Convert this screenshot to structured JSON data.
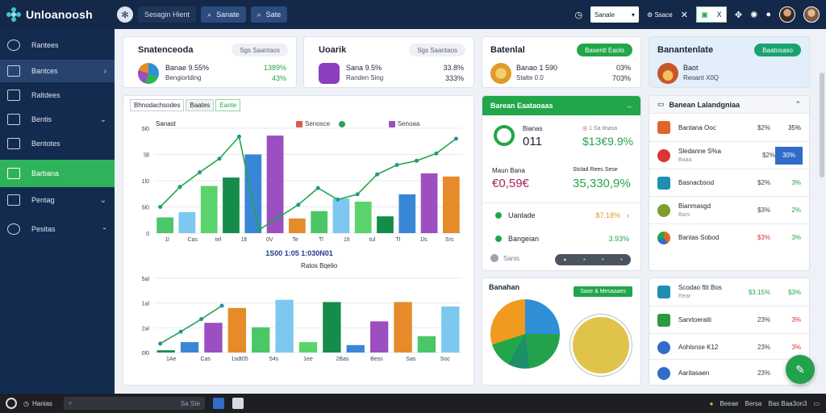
{
  "app": {
    "title": "Unloanoosh",
    "top_tabs": [
      "Sesagin Hient",
      "Sanate",
      "Sate"
    ]
  },
  "topbar": {
    "select_label": "Sanale",
    "close_label": "Ssace",
    "chip_label": "X"
  },
  "sidebar": {
    "items": [
      {
        "label": "Rantees",
        "chevron": "",
        "state": "normal"
      },
      {
        "label": "Bantces",
        "chevron": "›",
        "state": "selected"
      },
      {
        "label": "Raltdees",
        "chevron": "",
        "state": "normal"
      },
      {
        "label": "Bentis",
        "chevron": "⌄",
        "state": "normal"
      },
      {
        "label": "Bentotes",
        "chevron": "",
        "state": "normal"
      },
      {
        "label": "Barbana",
        "chevron": "",
        "state": "active"
      },
      {
        "label": "Pentag",
        "chevron": "⌄",
        "state": "normal"
      },
      {
        "label": "Pesitas",
        "chevron": "⁃",
        "state": "normal"
      }
    ]
  },
  "kpis": [
    {
      "title": "Snatenceoda",
      "pill": "Sgs Saantaos",
      "line1": "Banae 9.55%",
      "line2": "Bengiorlding",
      "val1": "1389%",
      "val2": "43%",
      "icon_color": "#e58b2a"
    },
    {
      "title": "Uoarik",
      "pill": "Sgs Saantaos",
      "line1": "Sana 9.5%",
      "line2": "Randen Sing",
      "val1": "33.8%",
      "val2": "333%",
      "icon_color": "#8b3fbf"
    },
    {
      "title": "Batenlal",
      "pill": "Basentl Eaols",
      "line1": "Banao 1 590",
      "line2": "Stalte 0.0",
      "val1": "03%",
      "val2": "703%",
      "icon_color": "#e19a2b"
    },
    {
      "title": "Banantenlate",
      "pill": "Baatosaso",
      "line1": "Baot",
      "line2": "Reoant X0Q",
      "val1": "",
      "val2": "",
      "icon_color": "#c8552a"
    }
  ],
  "main_chart": {
    "buttons": [
      "Bhnodachsodes",
      "Baates",
      "Eante"
    ],
    "label": "Sanast",
    "legend": [
      {
        "name": "Senosce",
        "color": "#d75f4c"
      },
      {
        "name": "",
        "color": "#30a15a"
      },
      {
        "name": "Senoaa",
        "color": "#9b4fc0"
      }
    ],
    "top_xlabel": "1S00 1:05 1:030N01",
    "top_xtitle": "Ratos Bqelio",
    "bottom_xticks": [
      "1Ae",
      "Cas",
      "1sdt05",
      "54s",
      "1ee",
      "2Bas",
      "Bess",
      "Sas",
      "Soc"
    ]
  },
  "chart_data": [
    {
      "type": "bar",
      "title": "",
      "yticks": [
        "5l0",
        "5ll",
        "1l0",
        "5l0",
        "0"
      ],
      "xticks": [
        "1l",
        "Cas",
        "tel",
        "1lt",
        "0V",
        "Te",
        "Tl",
        "1lt",
        "tul",
        "Tl",
        "1ls",
        "Srs"
      ],
      "bar_values": [
        1.5,
        2.0,
        4.5,
        5.3,
        7.5,
        9.3,
        1.4,
        2.1,
        3.3,
        3.0,
        1.6,
        3.7,
        5.7,
        5.4
      ],
      "line_values": [
        2.5,
        4.4,
        5.8,
        7.1,
        9.2,
        0.3,
        1.5,
        2.7,
        4.3,
        3.2,
        3.7,
        5.6,
        6.5,
        6.9,
        7.6,
        9.0
      ]
    },
    {
      "type": "bar",
      "title": "",
      "yticks": [
        "5al",
        "1al",
        "2al",
        "0l0"
      ],
      "xticks": [
        "1Ae",
        "Cas",
        "1sdt05",
        "54s",
        "1ee",
        "2Bas",
        "Bess",
        "Sas",
        "Soc"
      ],
      "bar_values": [
        0.3,
        1.4,
        4.0,
        6.0,
        3.4,
        7.1,
        1.4,
        6.8,
        1.0,
        4.2,
        6.8,
        2.2,
        6.2
      ],
      "line_values": [
        1.2,
        2.8,
        4.5,
        6.3
      ]
    }
  ],
  "green_panel": {
    "title": "Barean Eaataoaas",
    "row1_label": "Bianas",
    "row1_value": "011",
    "row1_tag": "1 Sa tinasa",
    "row1_amount": "$13€9.9%",
    "row2_left_label": "Maun Bana",
    "row2_left_value": "€0,59€",
    "row2_right_label": "Stclad Rees Sese",
    "row2_right_value": "35,330,9%",
    "item1_label": "Uanlade",
    "item1_value": "$7.18%",
    "item2_label": "Bangeian",
    "item2_value": "3.93%",
    "slider_label": "Sanis"
  },
  "pie_panel": {
    "title": "Banahan",
    "pill": "Sase & Mesaaaes"
  },
  "right_list_top": {
    "header": "Banean Lalandgniaa",
    "rows": [
      {
        "name": "Bantana Ooc",
        "sub": "",
        "v1": "$2%",
        "v2": "35%",
        "color": "#e0652d",
        "v2_color": "#2a313c"
      },
      {
        "name": "Sledanne S%a",
        "sub": "Baaa",
        "v1": "$2%",
        "v2": "30%",
        "color": "#d93535",
        "v2_color": "#fff"
      },
      {
        "name": "Basnacbsod",
        "sub": "",
        "v1": "$2%",
        "v2": "3%",
        "color": "#1f8fb0",
        "v2_color": "#21a64a"
      },
      {
        "name": "Bianmasgd",
        "sub": "Bars",
        "v1": "$3%",
        "v2": "2%",
        "color": "#7c9e2b",
        "v2_color": "#21a64a"
      },
      {
        "name": "Bantas Sobod",
        "sub": "",
        "v1": "$3%",
        "v2": "3%",
        "color": "#e06a1f",
        "v2_color": "#21a64a"
      }
    ]
  },
  "right_list_bottom": {
    "rows": [
      {
        "name": "Scodao ftit Bos",
        "sub": "Rear",
        "v1": "$3.15%",
        "v2": "$3%",
        "color": "#1f8fb0",
        "v1_color": "#21a64a",
        "v2_color": "#21a64a"
      },
      {
        "name": "Sanrtoeraiti",
        "sub": "",
        "v1": "23%",
        "v2": "3%",
        "color": "#2c9a3e",
        "v1_color": "#2a313c",
        "v2_color": "#d93535"
      },
      {
        "name": "Aohlsnse K12",
        "sub": "",
        "v1": "23%",
        "v2": "3%",
        "color": "#2f6dc8",
        "v1_color": "#2a313c",
        "v2_color": "#d93535"
      },
      {
        "name": "Aaritasaen",
        "sub": "",
        "v1": "23%",
        "v2": "3%",
        "color": "#2f6dc8",
        "v1_color": "#2a313c",
        "v2_color": "#21a64a"
      }
    ]
  },
  "taskbar": {
    "label": "Hanias",
    "search_placeholder": "",
    "search_hint": "Sa Ste",
    "right_items": [
      "Beeae",
      "Bersa",
      "Bas Baa3on3"
    ]
  }
}
